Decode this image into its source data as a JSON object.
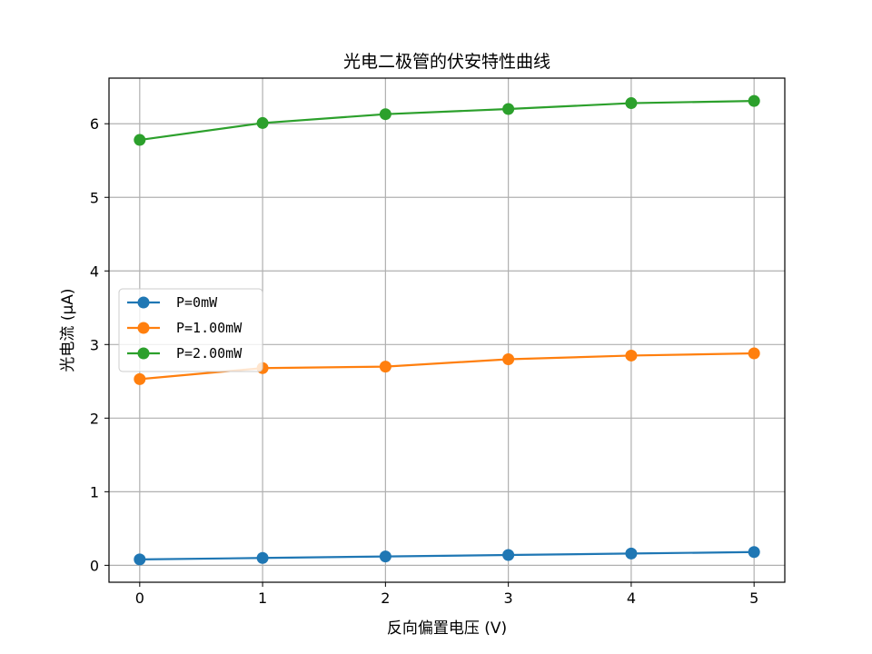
{
  "chart_data": {
    "type": "line",
    "title": "光电二极管的伏安特性曲线",
    "xlabel": "反向偏置电压 (V)",
    "ylabel": "光电流 (μA)",
    "x": [
      0,
      1,
      2,
      3,
      4,
      5
    ],
    "x_ticks": [
      0,
      1,
      2,
      3,
      4,
      5
    ],
    "y_ticks": [
      0,
      1,
      2,
      3,
      4,
      5,
      6
    ],
    "xlim": [
      -0.25,
      5.25
    ],
    "ylim": [
      -0.23,
      6.62
    ],
    "grid": true,
    "legend_position": "center-left",
    "series": [
      {
        "name": "P=0mW",
        "color": "#1f77b4",
        "marker": "circle",
        "values": [
          0.08,
          0.1,
          0.12,
          0.14,
          0.16,
          0.18
        ]
      },
      {
        "name": "P=1.00mW",
        "color": "#ff7f0e",
        "marker": "circle",
        "values": [
          2.53,
          2.68,
          2.7,
          2.8,
          2.85,
          2.88
        ]
      },
      {
        "name": "P=2.00mW",
        "color": "#2ca02c",
        "marker": "circle",
        "values": [
          5.78,
          6.01,
          6.13,
          6.2,
          6.28,
          6.31
        ]
      }
    ]
  }
}
